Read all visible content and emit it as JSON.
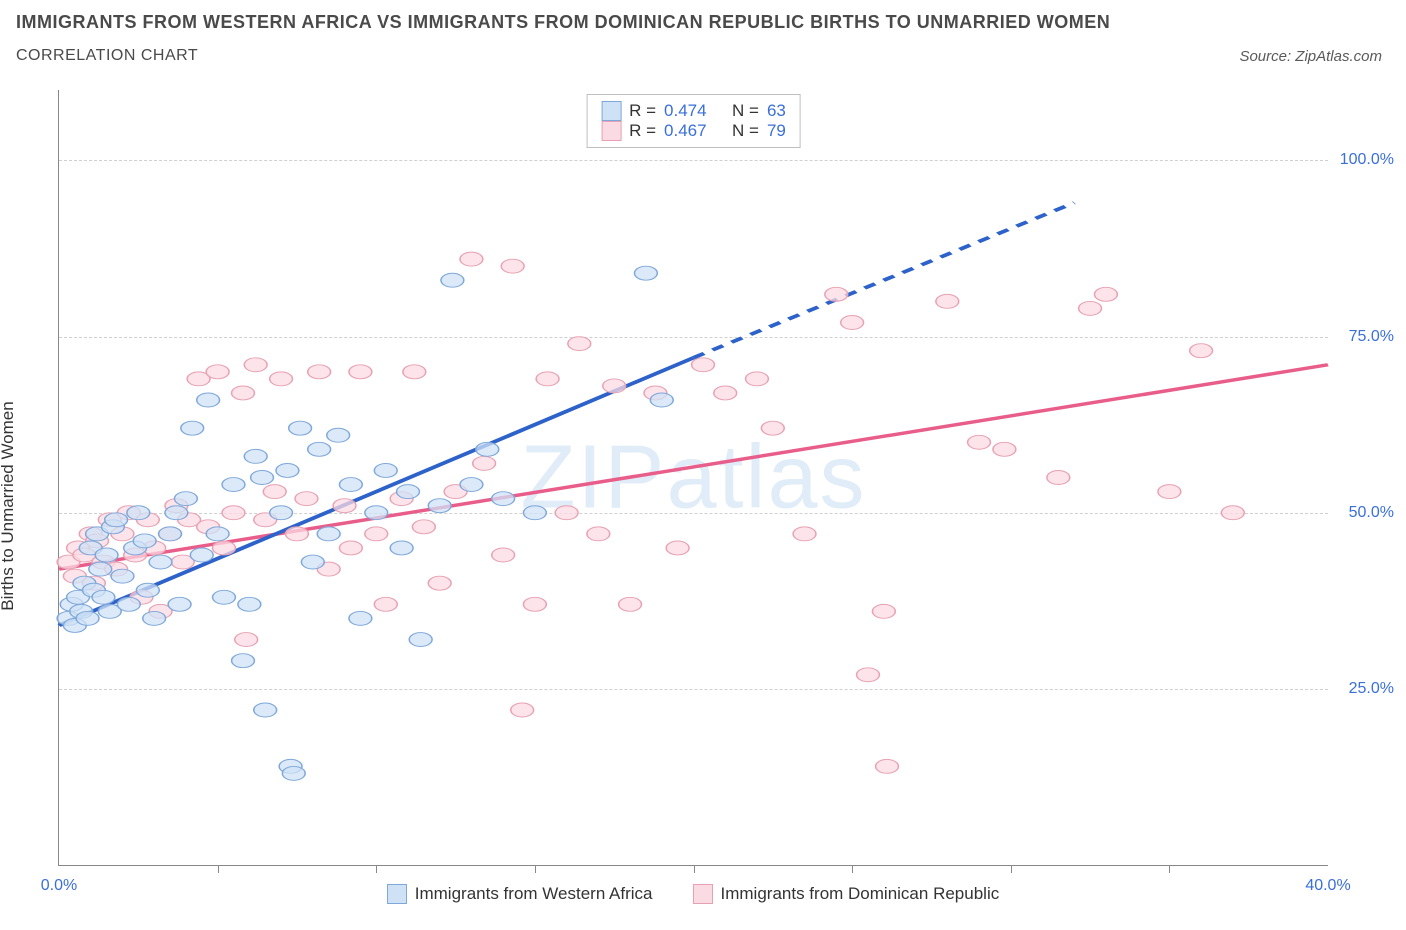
{
  "header": {
    "title": "IMMIGRANTS FROM WESTERN AFRICA VS IMMIGRANTS FROM DOMINICAN REPUBLIC BIRTHS TO UNMARRIED WOMEN",
    "subtitle": "CORRELATION CHART",
    "source": "Source: ZipAtlas.com"
  },
  "ylabel": "Births to Unmarried Women",
  "watermark": "ZIPatlas",
  "xlim": [
    0,
    40
  ],
  "ylim": [
    0,
    110
  ],
  "yticks": [
    25,
    50,
    75,
    100
  ],
  "ytick_labels": [
    "25.0%",
    "50.0%",
    "75.0%",
    "100.0%"
  ],
  "xticks_major": [
    0,
    40
  ],
  "xtick_labels": [
    "0.0%",
    "40.0%"
  ],
  "xticks_minor": [
    5,
    10,
    15,
    20,
    25,
    30,
    35
  ],
  "colors": {
    "blue_fill": "#cfe1f5",
    "blue_stroke": "#7fa8da",
    "blue_line": "#2c62c9",
    "pink_fill": "#fbdbe3",
    "pink_stroke": "#e8a1b3",
    "pink_line": "#e95d8a",
    "axis": "#888888",
    "grid": "#d0d0d0",
    "tick_text": "#3a6fd8",
    "text": "#333333"
  },
  "marker_radius": 9,
  "marker_opacity": 0.75,
  "line_width": 2.2,
  "legend_top": {
    "rows": [
      {
        "swatch": "blue",
        "r_label": "R =",
        "r": "0.474",
        "n_label": "N =",
        "n": "63"
      },
      {
        "swatch": "pink",
        "r_label": "R =",
        "r": "0.467",
        "n_label": "N =",
        "n": "79"
      }
    ]
  },
  "legend_bottom": {
    "series1": "Immigrants from Western Africa",
    "series2": "Immigrants from Dominican Republic"
  },
  "series_blue": {
    "points": [
      [
        0.3,
        35
      ],
      [
        0.4,
        37
      ],
      [
        0.5,
        34
      ],
      [
        0.6,
        38
      ],
      [
        0.7,
        36
      ],
      [
        0.8,
        40
      ],
      [
        0.9,
        35
      ],
      [
        1.0,
        45
      ],
      [
        1.1,
        39
      ],
      [
        1.2,
        47
      ],
      [
        1.3,
        42
      ],
      [
        1.4,
        38
      ],
      [
        1.5,
        44
      ],
      [
        1.6,
        36
      ],
      [
        1.7,
        48
      ],
      [
        1.8,
        49
      ],
      [
        2.0,
        41
      ],
      [
        2.2,
        37
      ],
      [
        2.4,
        45
      ],
      [
        2.5,
        50
      ],
      [
        2.7,
        46
      ],
      [
        2.8,
        39
      ],
      [
        3.0,
        35
      ],
      [
        3.2,
        43
      ],
      [
        3.5,
        47
      ],
      [
        3.7,
        50
      ],
      [
        3.8,
        37
      ],
      [
        4.0,
        52
      ],
      [
        4.2,
        62
      ],
      [
        4.5,
        44
      ],
      [
        4.7,
        66
      ],
      [
        5.0,
        47
      ],
      [
        5.2,
        38
      ],
      [
        5.5,
        54
      ],
      [
        5.8,
        29
      ],
      [
        6.0,
        37
      ],
      [
        6.2,
        58
      ],
      [
        6.4,
        55
      ],
      [
        6.5,
        22
      ],
      [
        7.0,
        50
      ],
      [
        7.2,
        56
      ],
      [
        7.3,
        14
      ],
      [
        7.4,
        13
      ],
      [
        7.6,
        62
      ],
      [
        8.0,
        43
      ],
      [
        8.2,
        59
      ],
      [
        8.5,
        47
      ],
      [
        8.8,
        61
      ],
      [
        9.2,
        54
      ],
      [
        9.5,
        35
      ],
      [
        10.0,
        50
      ],
      [
        10.3,
        56
      ],
      [
        10.8,
        45
      ],
      [
        11.0,
        53
      ],
      [
        11.4,
        32
      ],
      [
        12.0,
        51
      ],
      [
        12.4,
        83
      ],
      [
        13.0,
        54
      ],
      [
        13.5,
        59
      ],
      [
        14.0,
        52
      ],
      [
        15.0,
        50
      ],
      [
        18.5,
        84
      ],
      [
        19.0,
        66
      ]
    ],
    "trend": {
      "x1": 0,
      "y1": 34,
      "x2": 20,
      "y2": 72,
      "dash_to_x": 32,
      "dash_to_y": 94
    }
  },
  "series_pink": {
    "points": [
      [
        0.3,
        43
      ],
      [
        0.5,
        41
      ],
      [
        0.6,
        45
      ],
      [
        0.8,
        44
      ],
      [
        1.0,
        47
      ],
      [
        1.1,
        40
      ],
      [
        1.2,
        46
      ],
      [
        1.4,
        43
      ],
      [
        1.6,
        49
      ],
      [
        1.8,
        42
      ],
      [
        2.0,
        47
      ],
      [
        2.2,
        50
      ],
      [
        2.4,
        44
      ],
      [
        2.6,
        38
      ],
      [
        2.8,
        49
      ],
      [
        3.0,
        45
      ],
      [
        3.2,
        36
      ],
      [
        3.5,
        47
      ],
      [
        3.7,
        51
      ],
      [
        3.9,
        43
      ],
      [
        4.1,
        49
      ],
      [
        4.4,
        69
      ],
      [
        4.7,
        48
      ],
      [
        5.0,
        70
      ],
      [
        5.2,
        45
      ],
      [
        5.5,
        50
      ],
      [
        5.8,
        67
      ],
      [
        5.9,
        32
      ],
      [
        6.2,
        71
      ],
      [
        6.5,
        49
      ],
      [
        6.8,
        53
      ],
      [
        7.0,
        69
      ],
      [
        7.5,
        47
      ],
      [
        7.8,
        52
      ],
      [
        8.2,
        70
      ],
      [
        8.5,
        42
      ],
      [
        9.0,
        51
      ],
      [
        9.2,
        45
      ],
      [
        9.5,
        70
      ],
      [
        10.0,
        47
      ],
      [
        10.3,
        37
      ],
      [
        10.8,
        52
      ],
      [
        11.2,
        70
      ],
      [
        11.5,
        48
      ],
      [
        12.0,
        40
      ],
      [
        12.5,
        53
      ],
      [
        13.0,
        86
      ],
      [
        13.4,
        57
      ],
      [
        14.0,
        44
      ],
      [
        14.3,
        85
      ],
      [
        14.6,
        22
      ],
      [
        15.0,
        37
      ],
      [
        15.4,
        69
      ],
      [
        16.0,
        50
      ],
      [
        16.4,
        74
      ],
      [
        17.0,
        47
      ],
      [
        17.5,
        68
      ],
      [
        18.0,
        37
      ],
      [
        18.8,
        67
      ],
      [
        19.5,
        45
      ],
      [
        20.3,
        71
      ],
      [
        21.0,
        67
      ],
      [
        22.0,
        69
      ],
      [
        22.5,
        62
      ],
      [
        23.5,
        47
      ],
      [
        24.5,
        81
      ],
      [
        25.0,
        77
      ],
      [
        25.5,
        27
      ],
      [
        26.0,
        36
      ],
      [
        26.1,
        14
      ],
      [
        28.0,
        80
      ],
      [
        29.0,
        60
      ],
      [
        29.8,
        59
      ],
      [
        31.5,
        55
      ],
      [
        32.5,
        79
      ],
      [
        33.0,
        81
      ],
      [
        35.0,
        53
      ],
      [
        36.0,
        73
      ],
      [
        37.0,
        50
      ]
    ],
    "trend": {
      "x1": 0,
      "y1": 42,
      "x2": 40,
      "y2": 71
    }
  }
}
